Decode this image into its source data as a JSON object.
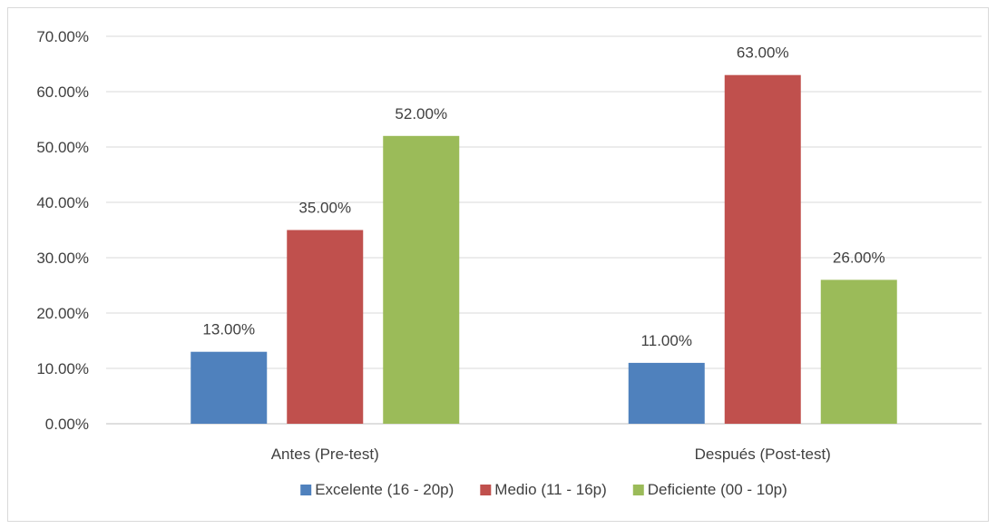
{
  "chart_data": {
    "type": "bar",
    "title": "",
    "xlabel": "",
    "ylabel": "",
    "ylim": [
      0,
      70
    ],
    "y_tick_step": 10,
    "y_tick_format": "percent_2dp",
    "grid": true,
    "legend_position": "bottom",
    "categories": [
      "Antes (Pre-test)",
      "Después (Post-test)"
    ],
    "series": [
      {
        "name": "Excelente (16 - 20p)",
        "color": "#4f81bd",
        "values": [
          13,
          11
        ],
        "labels": [
          "13.00%",
          "11.00%"
        ]
      },
      {
        "name": "Medio (11 - 16p)",
        "color": "#c0504d",
        "values": [
          35,
          63
        ],
        "labels": [
          "35.00%",
          "63.00%"
        ]
      },
      {
        "name": "Deficiente (00 - 10p)",
        "color": "#9bbb59",
        "values": [
          52,
          26
        ],
        "labels": [
          "52.00%",
          "26.00%"
        ]
      }
    ]
  }
}
